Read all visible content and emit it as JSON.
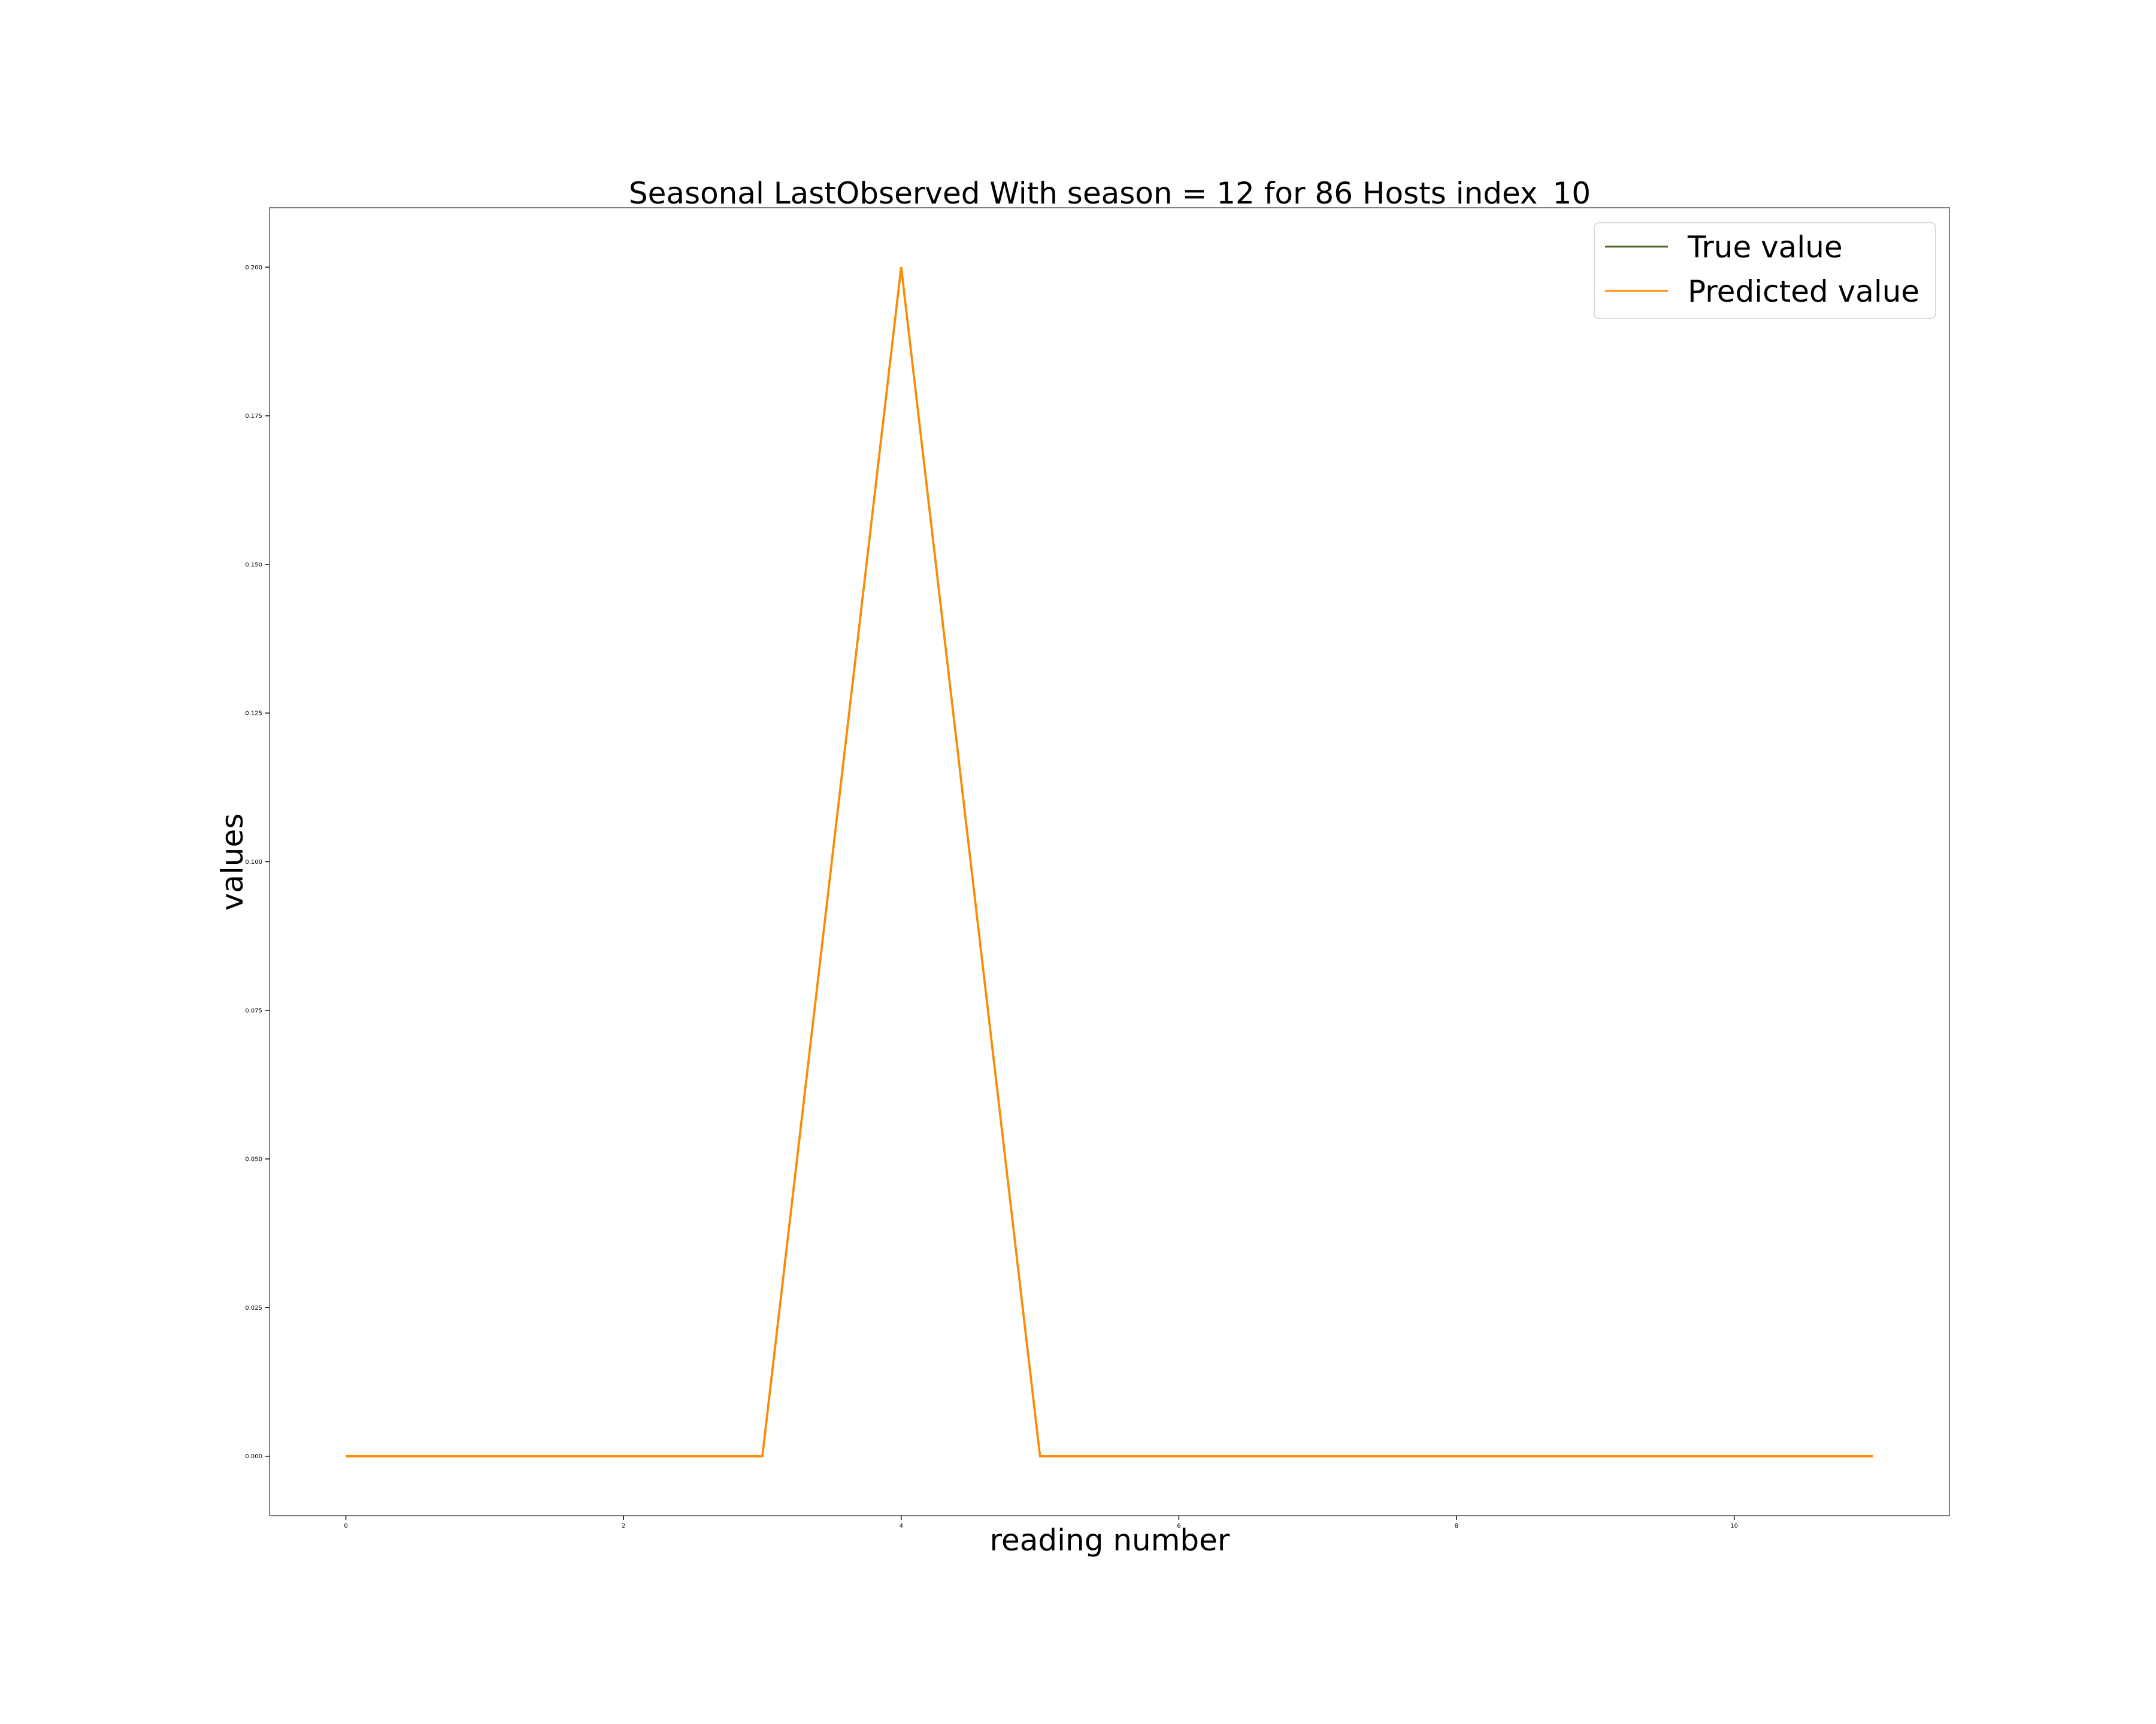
{
  "chart_data": {
    "type": "line",
    "title": "Seasonal LastObserved With season = 12 for 86 Hosts index_10",
    "xlabel": "reading number",
    "ylabel": "values",
    "xlim": [
      -0.55,
      11.55
    ],
    "ylim": [
      -0.01,
      0.21
    ],
    "x_ticks": [
      0,
      2,
      4,
      6,
      8,
      10
    ],
    "x_tick_labels": [
      "0",
      "2",
      "4",
      "6",
      "8",
      "10"
    ],
    "y_ticks": [
      0.0,
      0.025,
      0.05,
      0.075,
      0.1,
      0.125,
      0.15,
      0.175,
      0.2
    ],
    "y_tick_labels": [
      "0.000",
      "0.025",
      "0.050",
      "0.075",
      "0.100",
      "0.125",
      "0.150",
      "0.175",
      "0.200"
    ],
    "grid": false,
    "legend_position": "top-right",
    "x": [
      0,
      1,
      2,
      3,
      4,
      5,
      6,
      7,
      8,
      9,
      10,
      11
    ],
    "series": [
      {
        "name": "True value",
        "color": "#556b2f",
        "values": [
          0,
          0,
          0,
          0,
          0.2,
          0,
          0,
          0,
          0,
          0,
          0,
          0
        ]
      },
      {
        "name": "Predicted value",
        "color": "#ff8c00",
        "values": [
          0,
          0,
          0,
          0,
          0.2,
          0,
          0,
          0,
          0,
          0,
          0,
          0
        ]
      }
    ]
  }
}
